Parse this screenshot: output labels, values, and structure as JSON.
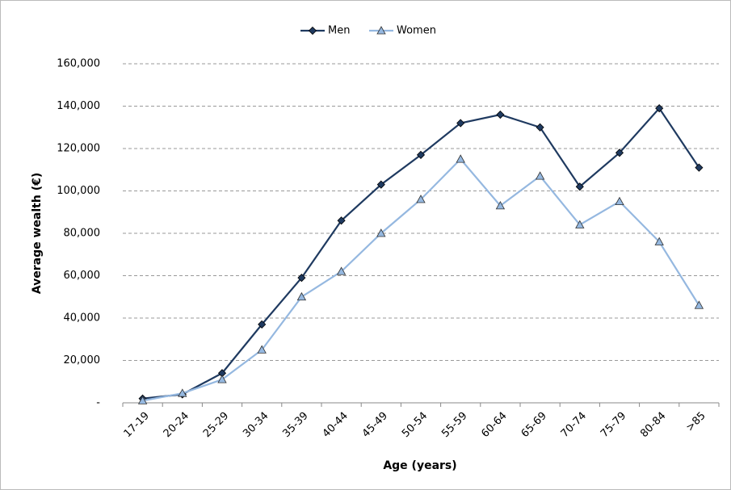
{
  "chart_data": {
    "type": "line",
    "x_label": "Age (years)",
    "y_label": "Average wealth (€)",
    "categories": [
      "17-19",
      "20-24",
      "25-29",
      "30-34",
      "35-39",
      "40-44",
      "45-49",
      "50-54",
      "55-59",
      "60-64",
      "65-69",
      "70-74",
      "75-79",
      "80-84",
      ">85"
    ],
    "series": [
      {
        "name": "Men",
        "color": "#1f3a60",
        "marker": "diamond",
        "values": [
          2000,
          4000,
          14000,
          37000,
          59000,
          86000,
          103000,
          117000,
          132000,
          136000,
          130000,
          102000,
          118000,
          139000,
          111000
        ]
      },
      {
        "name": "Women",
        "color": "#95b8e0",
        "marker": "triangle",
        "values": [
          1000,
          4500,
          11000,
          25000,
          50000,
          62000,
          80000,
          96000,
          115000,
          93000,
          107000,
          84000,
          95000,
          76000,
          46000
        ]
      }
    ],
    "ylim": [
      0,
      160000
    ],
    "yticks": [
      {
        "value": 0,
        "label": "-"
      },
      {
        "value": 20000,
        "label": "20,000"
      },
      {
        "value": 40000,
        "label": "40,000"
      },
      {
        "value": 60000,
        "label": "60,000"
      },
      {
        "value": 80000,
        "label": "80,000"
      },
      {
        "value": 100000,
        "label": "100,000"
      },
      {
        "value": 120000,
        "label": "120,000"
      },
      {
        "value": 140000,
        "label": "140,000"
      },
      {
        "value": 160000,
        "label": "160,000"
      }
    ],
    "grid": true,
    "legend": "top"
  }
}
